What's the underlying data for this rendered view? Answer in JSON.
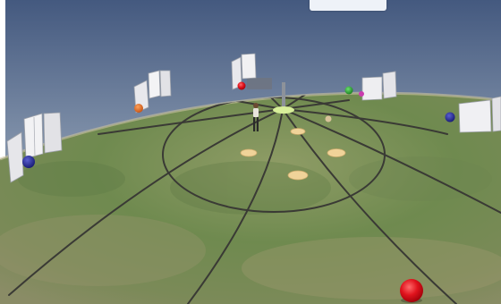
{
  "hud": {
    "counter_text": "",
    "accent_color": "#1f63c9"
  },
  "scene": {
    "icons": [
      "panel-icon",
      "sphere-icon",
      "target-pad-icon",
      "avatar-icon",
      "beacon-pole-icon"
    ],
    "colors": {
      "sky_top": "#4a5f86",
      "sky_bottom": "#aab6c6",
      "ground": "#7a8f55",
      "pad": "#f0d399",
      "red_sphere": "#e0131d",
      "blue_sphere": "#1b1f8f",
      "orange_sphere": "#e0661e",
      "green_sphere": "#22a32c"
    }
  }
}
